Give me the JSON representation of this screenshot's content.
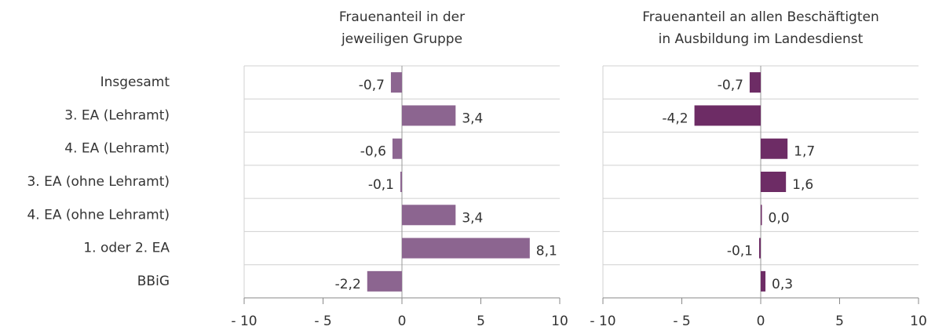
{
  "chart_data": [
    {
      "type": "bar",
      "orientation": "horizontal",
      "title": "Frauenanteil in der\njeweiligen Gruppe",
      "categories": [
        "Insgesamt",
        "3. EA (Lehramt)",
        "4. EA (Lehramt)",
        "3. EA (ohne Lehramt)",
        "4. EA (ohne Lehramt)",
        "1. oder 2. EA",
        "BBiG"
      ],
      "values": [
        -0.7,
        3.4,
        -0.6,
        -0.1,
        3.4,
        8.1,
        -2.2
      ],
      "value_labels": [
        "-0,7",
        "3,4",
        "-0,6",
        "-0,1",
        "3,4",
        "8,1",
        "-2,2"
      ],
      "color": "#8c6590",
      "xlim": [
        -10,
        10
      ],
      "xticks": [
        {
          "value": -10,
          "label": "- 10"
        },
        {
          "value": -5,
          "label": "- 5"
        },
        0,
        5,
        10
      ],
      "grid": true
    },
    {
      "type": "bar",
      "orientation": "horizontal",
      "title": "Frauenanteil an allen Beschäftigten\nin Ausbildung im Landesdienst",
      "values": [
        -0.7,
        -4.2,
        1.7,
        1.6,
        0.0,
        -0.1,
        0.3
      ],
      "value_labels": [
        "-0,7",
        "-4,2",
        "1,7",
        "1,6",
        "0,0",
        "-0,1",
        "0,3"
      ],
      "color": "#6d2c65",
      "xlim": [
        -10,
        10
      ],
      "xticks": [
        {
          "value": -10,
          "label": "- 10"
        },
        {
          "value": -5,
          "label": "- 5"
        },
        0,
        5,
        10
      ],
      "grid": true
    }
  ]
}
